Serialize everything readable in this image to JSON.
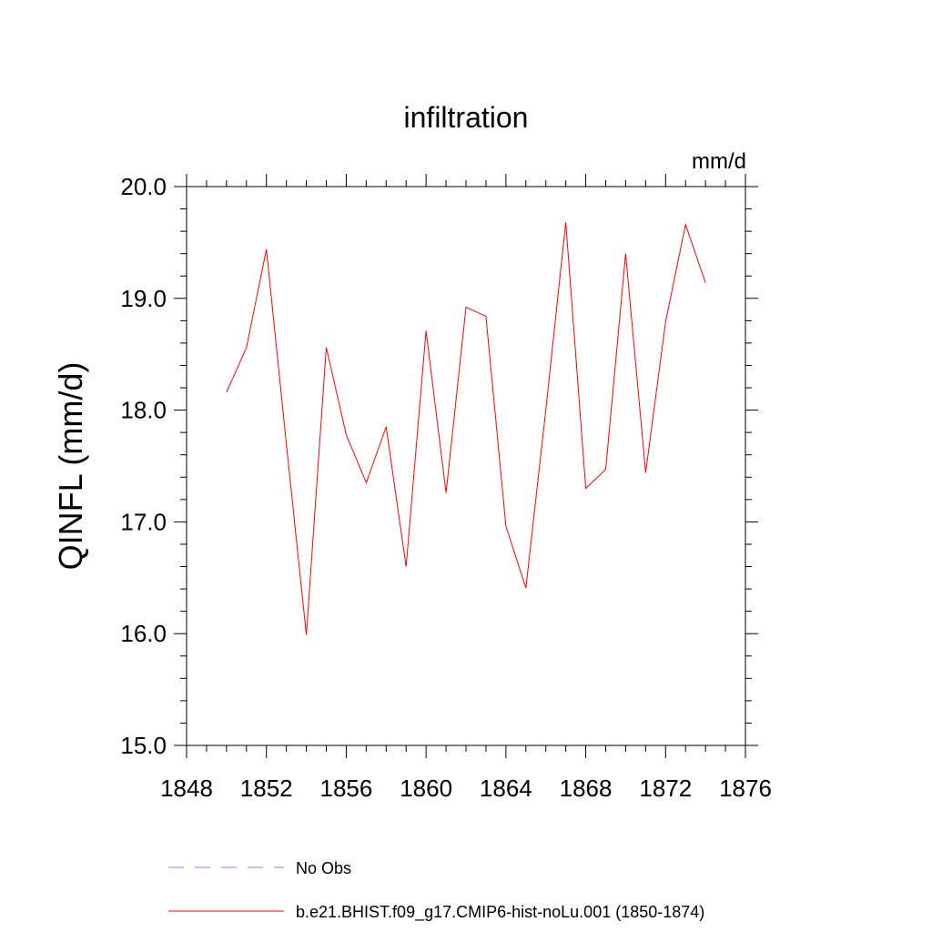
{
  "chart_data": {
    "type": "line",
    "title": "infiltration",
    "units_label": "mm/d",
    "ylabel": "QINFL  (mm/d)",
    "xlabel": "",
    "xlim": [
      1848,
      1876
    ],
    "ylim": [
      15.0,
      20.0
    ],
    "x_ticks": [
      1848,
      1852,
      1856,
      1860,
      1864,
      1868,
      1872,
      1876
    ],
    "x_tick_labels": [
      "1848",
      "1852",
      "1856",
      "1860",
      "1864",
      "1868",
      "1872",
      "1876"
    ],
    "y_ticks": [
      15.0,
      16.0,
      17.0,
      18.0,
      19.0,
      20.0
    ],
    "y_tick_labels": [
      "15.0",
      "16.0",
      "17.0",
      "18.0",
      "19.0",
      "20.0"
    ],
    "grid": false,
    "legend_position": "bottom",
    "series": [
      {
        "name": "No Obs",
        "color": "#8080ff",
        "style": "dashed",
        "x": [],
        "y": []
      },
      {
        "name": "b.e21.BHIST.f09_g17.CMIP6-hist-noLu.001 (1850-1874)",
        "color": "#ff0000",
        "style": "solid",
        "x": [
          1850,
          1851,
          1852,
          1853,
          1854,
          1855,
          1856,
          1857,
          1858,
          1859,
          1860,
          1861,
          1862,
          1863,
          1864,
          1865,
          1866,
          1867,
          1868,
          1869,
          1870,
          1871,
          1872,
          1873,
          1874
        ],
        "y": [
          18.16,
          18.56,
          19.44,
          17.7,
          15.99,
          18.56,
          17.78,
          17.35,
          17.85,
          16.6,
          18.71,
          17.26,
          18.92,
          18.84,
          16.96,
          16.41,
          18.0,
          19.68,
          17.3,
          17.47,
          19.4,
          17.44,
          18.79,
          19.66,
          19.14
        ]
      }
    ]
  }
}
